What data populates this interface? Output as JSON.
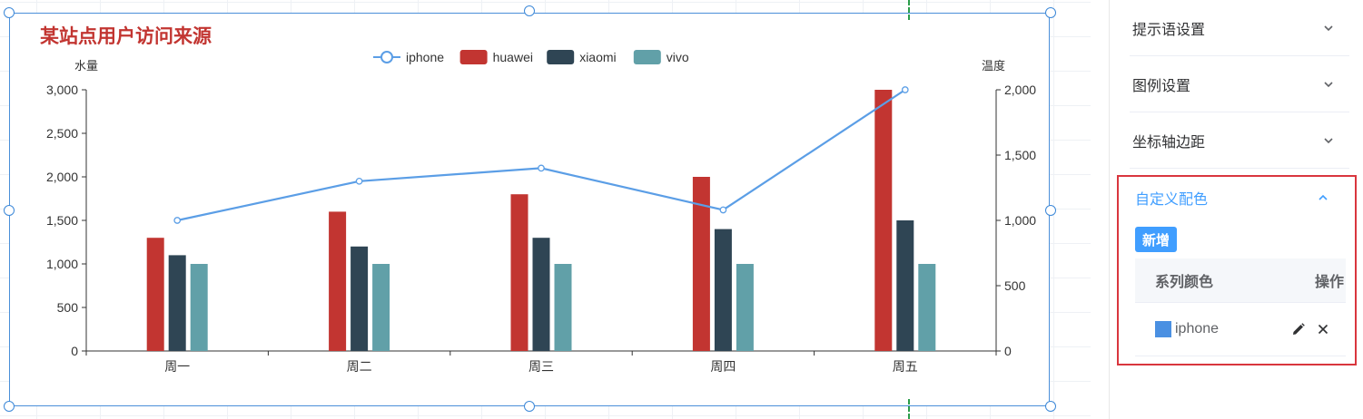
{
  "colors": {
    "accent": "#409eff",
    "highlight_border": "#d9363e",
    "selection": "#4a8fd9",
    "title": "#c23531"
  },
  "chart_data": {
    "type": "bar",
    "title": "某站点用户访问来源",
    "categories": [
      "周一",
      "周二",
      "周三",
      "周四",
      "周五"
    ],
    "y_left": {
      "label": "水量",
      "min": 0,
      "max": 3000,
      "ticks": [
        0,
        500,
        1000,
        1500,
        2000,
        2500,
        3000
      ],
      "tick_labels": [
        "0",
        "500",
        "1,000",
        "1,500",
        "2,000",
        "2,500",
        "3,000"
      ]
    },
    "y_right": {
      "label": "温度",
      "min": 0,
      "max": 2000,
      "ticks": [
        0,
        500,
        1000,
        1500,
        2000
      ],
      "tick_labels": [
        "0",
        "500",
        "1,000",
        "1,500",
        "2,000"
      ]
    },
    "legend_position": "top-center",
    "series": [
      {
        "name": "iphone",
        "type": "line",
        "axis": "right",
        "color": "#5b9ee6",
        "values": [
          1000,
          1300,
          1400,
          1080,
          2000
        ]
      },
      {
        "name": "huawei",
        "type": "bar",
        "axis": "left",
        "color": "#c23531",
        "values": [
          1300,
          1600,
          1800,
          2000,
          3000
        ]
      },
      {
        "name": "xiaomi",
        "type": "bar",
        "axis": "left",
        "color": "#2f4554",
        "values": [
          1100,
          1200,
          1300,
          1400,
          1500
        ]
      },
      {
        "name": "vivo",
        "type": "bar",
        "axis": "left",
        "color": "#61a0a8",
        "values": [
          1000,
          1000,
          1000,
          1000,
          1000
        ]
      }
    ],
    "grid": true
  },
  "panel": {
    "sections": [
      {
        "label": "提示语设置"
      },
      {
        "label": "图例设置"
      },
      {
        "label": "坐标轴边距"
      }
    ],
    "custom_colors": {
      "title": "自定义配色",
      "add_label": "新增",
      "columns": [
        "系列颜色",
        "操作"
      ],
      "rows": [
        {
          "name": "iphone",
          "color": "#4a90e2"
        }
      ]
    }
  }
}
